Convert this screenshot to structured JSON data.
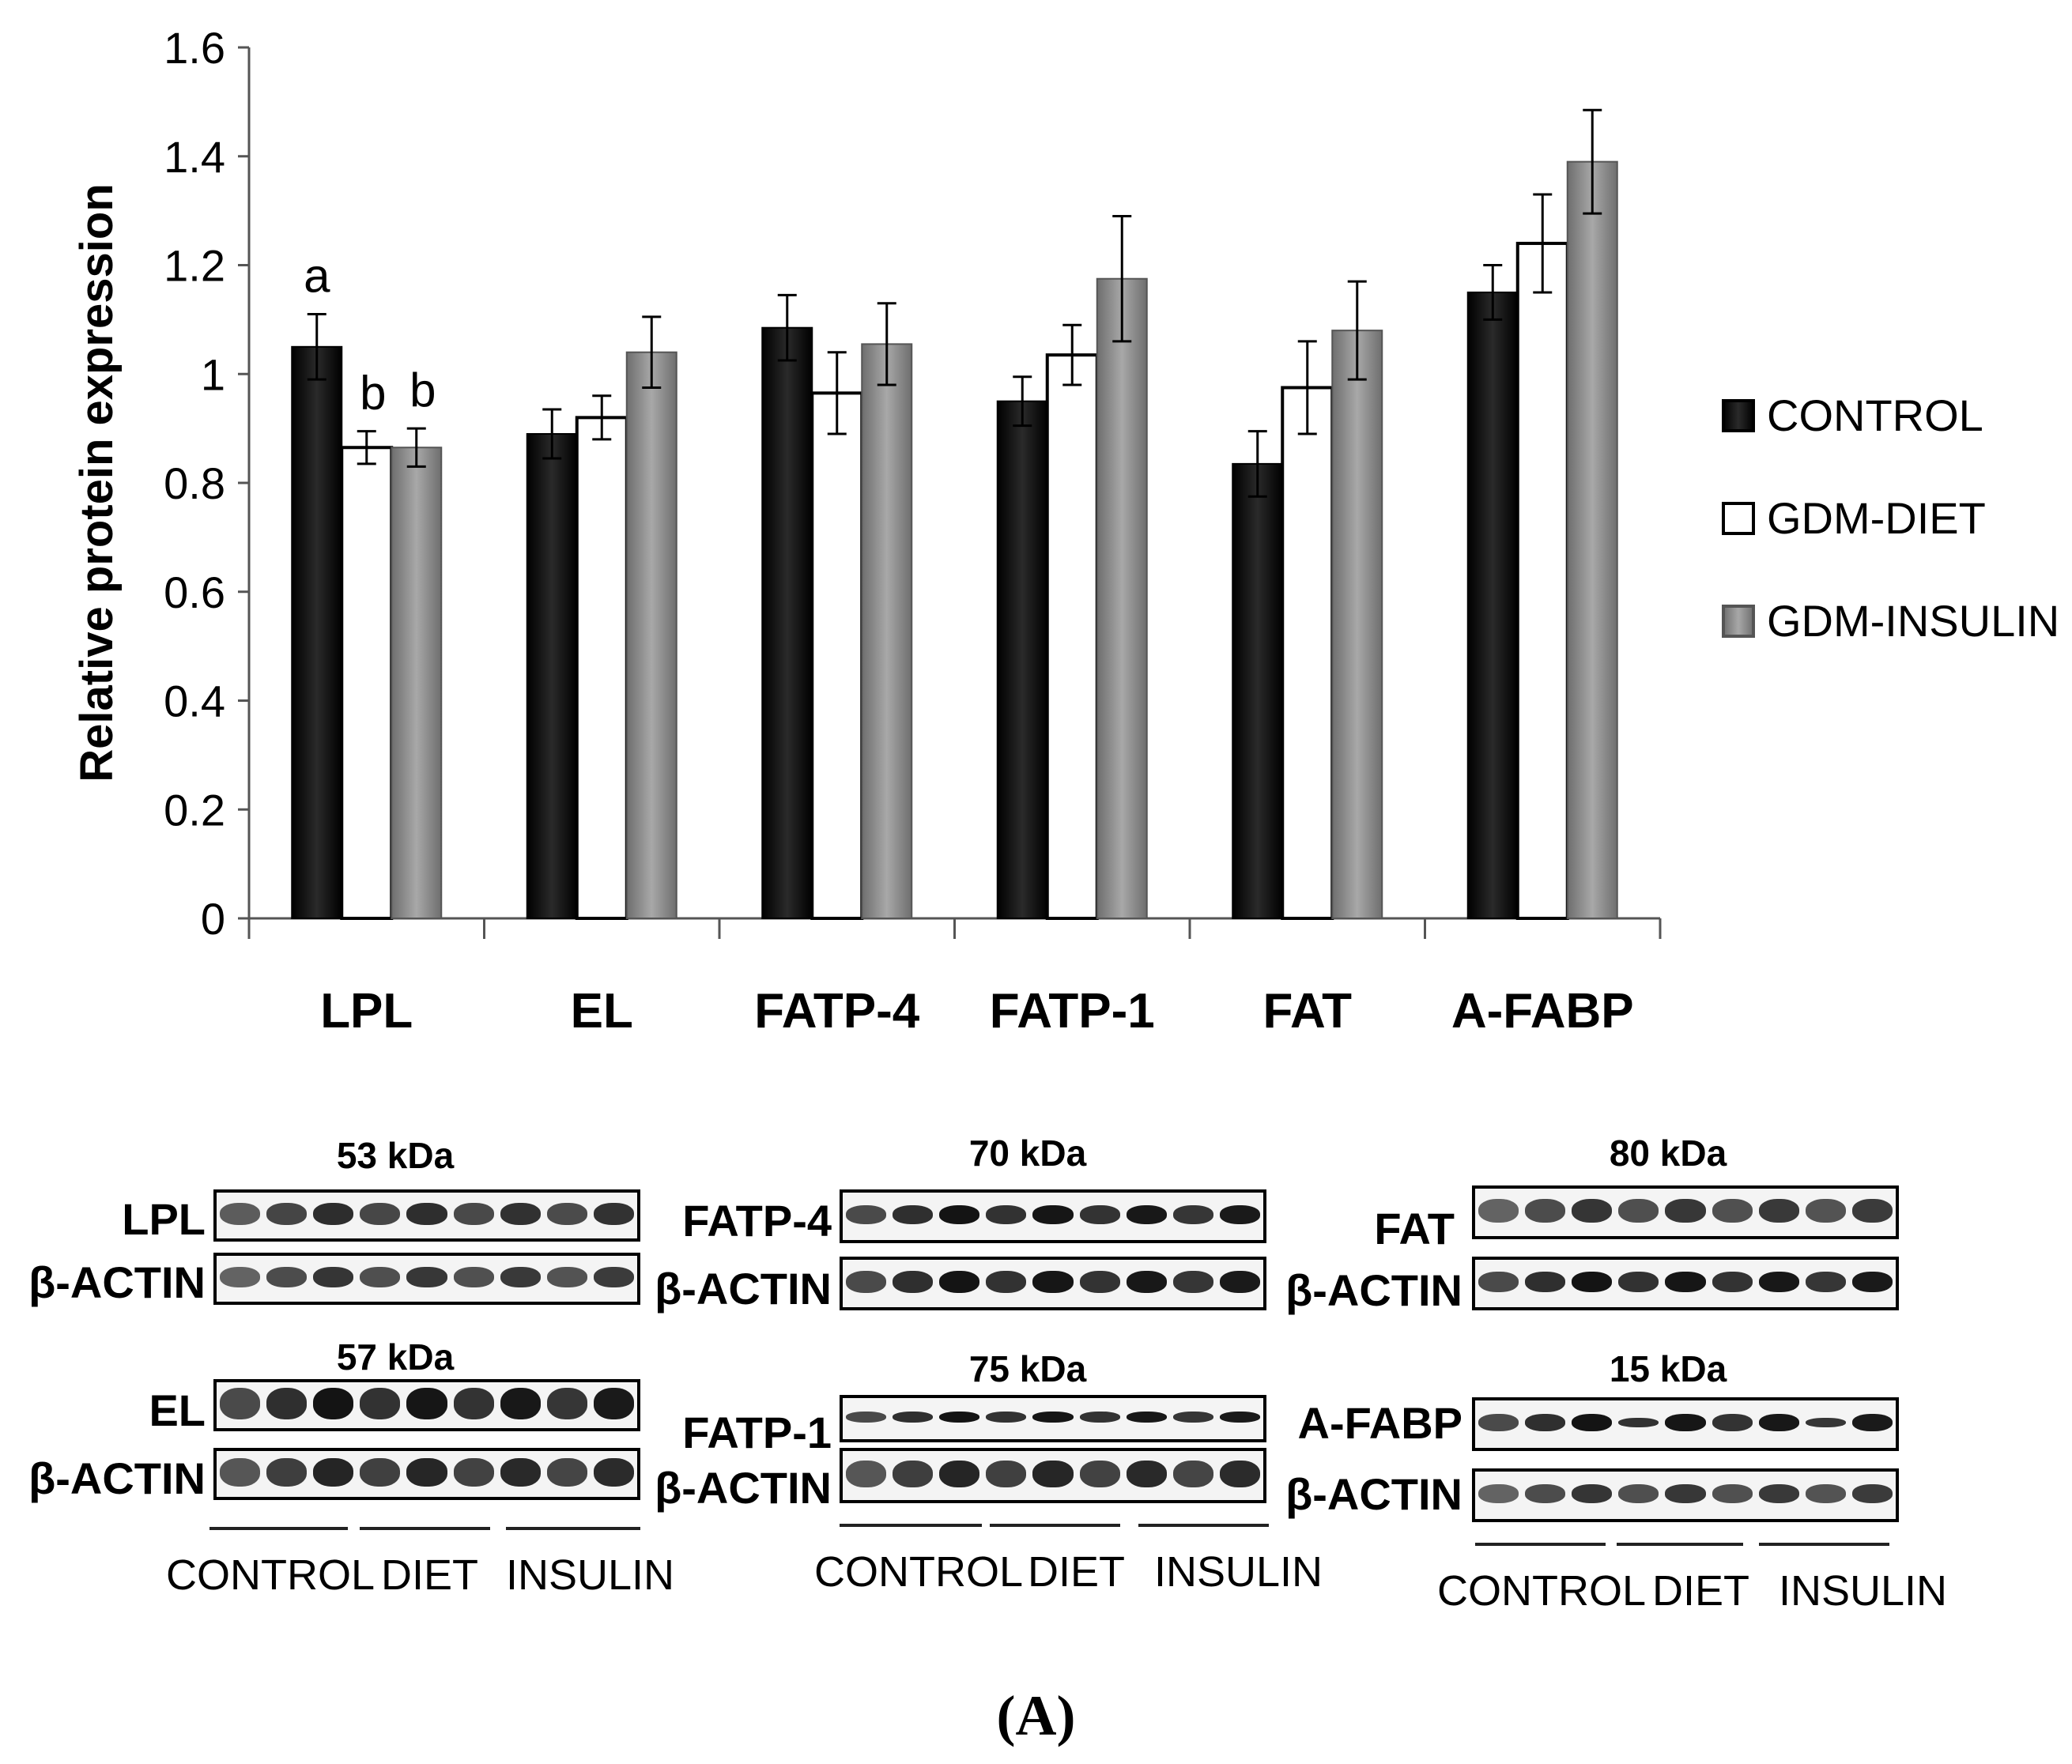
{
  "chart_data": {
    "type": "bar",
    "title": "",
    "xlabel": "",
    "ylabel": "Relative protein expression",
    "ylim": [
      0,
      1.6
    ],
    "yticks": [
      "0",
      "0.2",
      "0.4",
      "0.6",
      "0.8",
      "1",
      "1.2",
      "1.4",
      "1.6"
    ],
    "categories": [
      "LPL",
      "EL",
      "FATP-4",
      "FATP-1",
      "FAT",
      "A-FABP"
    ],
    "series": [
      {
        "name": "CONTROL",
        "color": "#111111",
        "values": [
          1.05,
          0.89,
          1.085,
          0.95,
          0.835,
          1.15
        ],
        "errors": [
          0.06,
          0.045,
          0.06,
          0.045,
          0.06,
          0.05
        ]
      },
      {
        "name": "GDM-DIET",
        "color": "#ffffff",
        "values": [
          0.865,
          0.92,
          0.965,
          1.035,
          0.975,
          1.24
        ],
        "errors": [
          0.03,
          0.04,
          0.075,
          0.055,
          0.085,
          0.09
        ]
      },
      {
        "name": "GDM-INSULIN",
        "color": "#8c8c8c",
        "values": [
          0.865,
          1.04,
          1.055,
          1.175,
          1.08,
          1.39
        ],
        "errors": [
          0.035,
          0.065,
          0.075,
          0.115,
          0.09,
          0.095
        ]
      }
    ],
    "annotations": [
      {
        "category": "LPL",
        "series": "CONTROL",
        "text": "a"
      },
      {
        "category": "LPL",
        "series": "GDM-DIET",
        "text": "b"
      },
      {
        "category": "LPL",
        "series": "GDM-INSULIN",
        "text": "b"
      }
    ],
    "legend_position": "right"
  },
  "blots": [
    {
      "kda": "53 kDa",
      "target": "LPL",
      "actin": "β-ACTIN",
      "groups": [
        "CONTROL",
        "DIET",
        "INSULIN"
      ]
    },
    {
      "kda": "57 kDa",
      "target": "EL",
      "actin": "β-ACTIN"
    },
    {
      "kda": "70 kDa",
      "target": "FATP-4",
      "actin": "β-ACTIN",
      "groups": [
        "CONTROL",
        "DIET",
        "INSULIN"
      ]
    },
    {
      "kda": "75 kDa",
      "target": "FATP-1",
      "actin": "β-ACTIN"
    },
    {
      "kda": "80 kDa",
      "target": "FAT",
      "actin": "β-ACTIN",
      "groups": [
        "CONTROL",
        "DIET",
        "INSULIN"
      ]
    },
    {
      "kda": "15 kDa",
      "target": "A-FABP",
      "actin": "β-ACTIN"
    }
  ],
  "panel_label": "(A)"
}
